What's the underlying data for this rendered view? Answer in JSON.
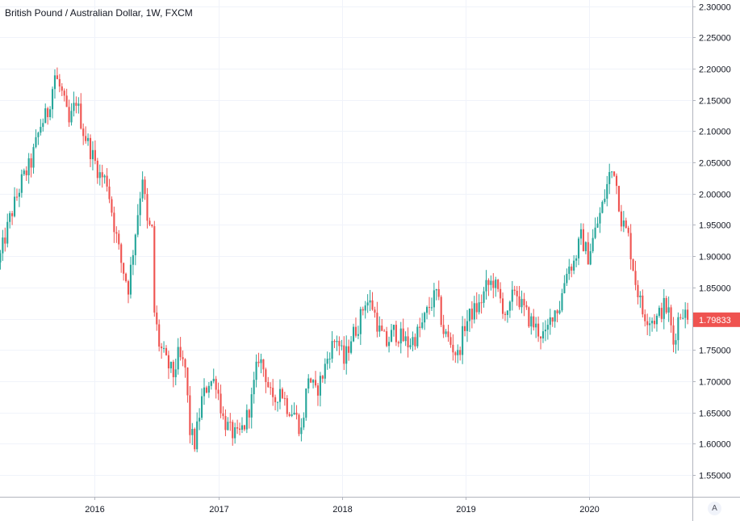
{
  "window": {
    "title": "British Pound / Australian Dollar, 1W, FXCM",
    "auto_scale_label": "A"
  },
  "colors": {
    "up": "#26a69a",
    "down": "#ef5350",
    "grid": "#f0f3fa",
    "axis_line": "#b2b5be",
    "text": "#131722",
    "last_price_bg": "#ef5350"
  },
  "chart_data": {
    "type": "candlestick",
    "title": "British Pound / Australian Dollar, 1W, FXCM",
    "ylim": [
      1.515,
      2.31
    ],
    "xlim": [
      "2015-03-28",
      "2020-11-01"
    ],
    "grid": true,
    "y_ticks": [
      "2.30000",
      "2.25000",
      "2.20000",
      "2.15000",
      "2.10000",
      "2.05000",
      "2.00000",
      "1.95000",
      "1.90000",
      "1.85000",
      "1.80000",
      "1.75000",
      "1.70000",
      "1.65000",
      "1.60000",
      "1.55000"
    ],
    "x_ticks": [
      "2016",
      "2017",
      "2018",
      "2019",
      "2020"
    ],
    "last_price": "1.79833",
    "close_path": [
      [
        "2015-03-29",
        1.9
      ],
      [
        "2015-04-26",
        1.96
      ],
      [
        "2015-05-31",
        2.02
      ],
      [
        "2015-06-28",
        2.05
      ],
      [
        "2015-07-26",
        2.11
      ],
      [
        "2015-08-16",
        2.13
      ],
      [
        "2015-09-06",
        2.19
      ],
      [
        "2015-09-27",
        2.16
      ],
      [
        "2015-10-18",
        2.11
      ],
      [
        "2015-11-08",
        2.15
      ],
      [
        "2015-11-29",
        2.1
      ],
      [
        "2015-12-20",
        2.07
      ],
      [
        "2016-01-17",
        2.03
      ],
      [
        "2016-02-07",
        2.02
      ],
      [
        "2016-02-28",
        1.95
      ],
      [
        "2016-03-20",
        1.89
      ],
      [
        "2016-04-10",
        1.85
      ],
      [
        "2016-05-01",
        1.94
      ],
      [
        "2016-05-22",
        2.03
      ],
      [
        "2016-06-05",
        1.95
      ],
      [
        "2016-06-19",
        1.94
      ],
      [
        "2016-06-26",
        1.81
      ],
      [
        "2016-07-10",
        1.76
      ],
      [
        "2016-07-31",
        1.73
      ],
      [
        "2016-08-21",
        1.71
      ],
      [
        "2016-09-04",
        1.74
      ],
      [
        "2016-09-25",
        1.72
      ],
      [
        "2016-10-09",
        1.62
      ],
      [
        "2016-10-23",
        1.6
      ],
      [
        "2016-11-13",
        1.67
      ],
      [
        "2016-12-04",
        1.7
      ],
      [
        "2016-12-25",
        1.7
      ],
      [
        "2017-01-15",
        1.64
      ],
      [
        "2017-02-05",
        1.62
      ],
      [
        "2017-02-26",
        1.61
      ],
      [
        "2017-03-19",
        1.63
      ],
      [
        "2017-04-09",
        1.67
      ],
      [
        "2017-04-30",
        1.74
      ],
      [
        "2017-05-21",
        1.71
      ],
      [
        "2017-06-11",
        1.66
      ],
      [
        "2017-07-02",
        1.69
      ],
      [
        "2017-07-23",
        1.66
      ],
      [
        "2017-08-13",
        1.65
      ],
      [
        "2017-09-03",
        1.62
      ],
      [
        "2017-09-24",
        1.71
      ],
      [
        "2017-10-15",
        1.68
      ],
      [
        "2017-11-05",
        1.71
      ],
      [
        "2017-11-26",
        1.75
      ],
      [
        "2017-12-17",
        1.77
      ],
      [
        "2018-01-07",
        1.73
      ],
      [
        "2018-01-28",
        1.77
      ],
      [
        "2018-02-18",
        1.79
      ],
      [
        "2018-03-11",
        1.83
      ],
      [
        "2018-04-01",
        1.82
      ],
      [
        "2018-04-22",
        1.78
      ],
      [
        "2018-05-13",
        1.76
      ],
      [
        "2018-06-03",
        1.78
      ],
      [
        "2018-06-24",
        1.77
      ],
      [
        "2018-07-15",
        1.76
      ],
      [
        "2018-08-05",
        1.77
      ],
      [
        "2018-08-26",
        1.79
      ],
      [
        "2018-09-16",
        1.82
      ],
      [
        "2018-10-07",
        1.84
      ],
      [
        "2018-10-28",
        1.78
      ],
      [
        "2018-11-18",
        1.76
      ],
      [
        "2018-12-09",
        1.74
      ],
      [
        "2018-12-30",
        1.79
      ],
      [
        "2019-01-20",
        1.81
      ],
      [
        "2019-02-10",
        1.82
      ],
      [
        "2019-03-03",
        1.85
      ],
      [
        "2019-03-24",
        1.86
      ],
      [
        "2019-04-14",
        1.83
      ],
      [
        "2019-05-05",
        1.8
      ],
      [
        "2019-05-26",
        1.85
      ],
      [
        "2019-06-16",
        1.82
      ],
      [
        "2019-07-07",
        1.8
      ],
      [
        "2019-08-04",
        1.78
      ],
      [
        "2019-08-25",
        1.77
      ],
      [
        "2019-09-15",
        1.81
      ],
      [
        "2019-10-06",
        1.82
      ],
      [
        "2019-10-27",
        1.88
      ],
      [
        "2019-11-17",
        1.89
      ],
      [
        "2019-12-08",
        1.93
      ],
      [
        "2019-12-29",
        1.9
      ],
      [
        "2020-01-19",
        1.94
      ],
      [
        "2020-02-09",
        1.98
      ],
      [
        "2020-03-01",
        2.03
      ],
      [
        "2020-03-15",
        2.04
      ],
      [
        "2020-04-05",
        1.96
      ],
      [
        "2020-04-26",
        1.93
      ],
      [
        "2020-05-17",
        1.86
      ],
      [
        "2020-06-07",
        1.81
      ],
      [
        "2020-06-28",
        1.8
      ],
      [
        "2020-07-19",
        1.8
      ],
      [
        "2020-08-09",
        1.82
      ],
      [
        "2020-08-23",
        1.81
      ],
      [
        "2020-09-06",
        1.76
      ],
      [
        "2020-09-20",
        1.8
      ],
      [
        "2020-10-04",
        1.815
      ],
      [
        "2020-10-18",
        1.79833
      ]
    ]
  }
}
